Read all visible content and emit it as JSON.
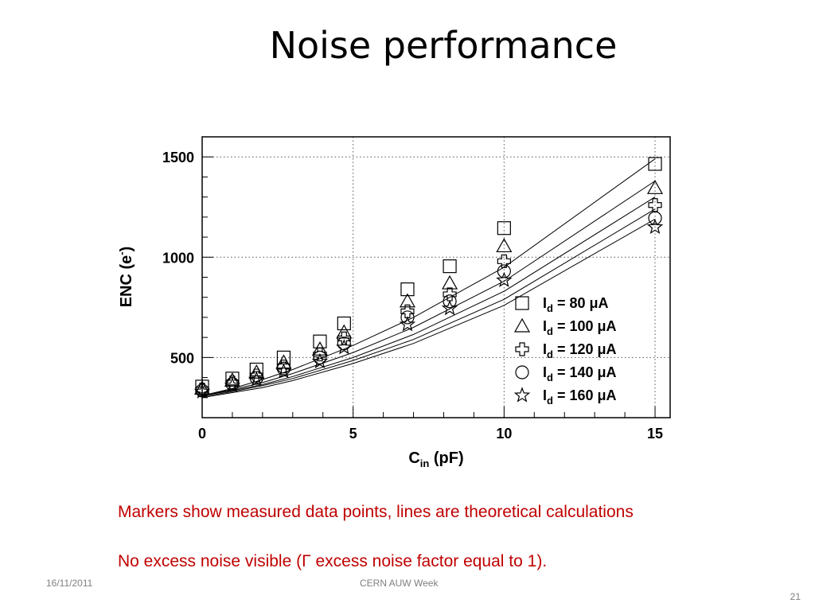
{
  "slide": {
    "title": "Noise performance",
    "caption_line1": "Markers show measured data points, lines are theoretical calculations",
    "caption_line2": "No excess noise visible (Γ excess noise factor  equal to 1).",
    "footer_date": "16/11/2011",
    "footer_center": "CERN AUW Week",
    "page_number": "21"
  },
  "chart_data": {
    "type": "scatter",
    "xlabel_main": "C",
    "xlabel_sub": "in",
    "xlabel_rest": " (pF)",
    "ylabel_main": "ENC (e",
    "ylabel_sup": "-",
    "ylabel_rest": ")",
    "xlim": [
      0,
      15.5
    ],
    "ylim": [
      200,
      1600
    ],
    "x_ticks": [
      0,
      5,
      10,
      15
    ],
    "y_ticks": [
      500,
      1000,
      1500
    ],
    "grid": true,
    "legend_position": "bottom-right",
    "x": [
      0,
      1,
      1.8,
      2.7,
      3.9,
      4.7,
      6.8,
      8.2,
      10,
      15
    ],
    "series": [
      {
        "name_prefix": "I",
        "name_sub": "d",
        "name_suffix": " = 80 μA",
        "marker": "square",
        "values": [
          355,
          395,
          440,
          500,
          580,
          670,
          840,
          955,
          1145,
          1465
        ],
        "fit": [
          [
            0,
            310
          ],
          [
            1,
            345
          ],
          [
            2,
            390
          ],
          [
            3,
            440
          ],
          [
            5,
            560
          ],
          [
            7,
            700
          ],
          [
            10,
            950
          ],
          [
            15,
            1490
          ]
        ]
      },
      {
        "name_prefix": "I",
        "name_sub": "d",
        "name_suffix": " = 100 μA",
        "marker": "triangle",
        "values": [
          345,
          385,
          425,
          475,
          540,
          625,
          780,
          870,
          1055,
          1345
        ],
        "fit": [
          [
            0,
            310
          ],
          [
            1,
            340
          ],
          [
            2,
            375
          ],
          [
            3,
            420
          ],
          [
            5,
            525
          ],
          [
            7,
            650
          ],
          [
            10,
            880
          ],
          [
            15,
            1380
          ]
        ]
      },
      {
        "name_prefix": "I",
        "name_sub": "d",
        "name_suffix": " = 120 μA",
        "marker": "cross",
        "values": [
          340,
          375,
          410,
          455,
          515,
          595,
          730,
          815,
          980,
          1260
        ],
        "fit": [
          [
            0,
            310
          ],
          [
            1,
            335
          ],
          [
            2,
            365
          ],
          [
            3,
            405
          ],
          [
            5,
            500
          ],
          [
            7,
            615
          ],
          [
            10,
            830
          ],
          [
            15,
            1300
          ]
        ]
      },
      {
        "name_prefix": "I",
        "name_sub": "d",
        "name_suffix": " = 140 μA",
        "marker": "circle",
        "values": [
          335,
          368,
          398,
          445,
          500,
          570,
          700,
          780,
          930,
          1195
        ],
        "fit": [
          [
            0,
            305
          ],
          [
            1,
            330
          ],
          [
            2,
            360
          ],
          [
            3,
            395
          ],
          [
            5,
            485
          ],
          [
            7,
            590
          ],
          [
            10,
            790
          ],
          [
            15,
            1240
          ]
        ]
      },
      {
        "name_prefix": "I",
        "name_sub": "d",
        "name_suffix": " = 160 μA",
        "marker": "star",
        "values": [
          330,
          360,
          390,
          430,
          480,
          550,
          665,
          745,
          885,
          1150
        ],
        "fit": [
          [
            0,
            300
          ],
          [
            1,
            325
          ],
          [
            2,
            350
          ],
          [
            3,
            385
          ],
          [
            5,
            470
          ],
          [
            7,
            570
          ],
          [
            10,
            760
          ],
          [
            15,
            1190
          ]
        ]
      }
    ]
  }
}
